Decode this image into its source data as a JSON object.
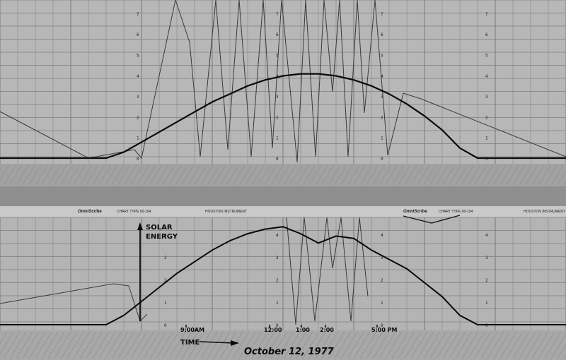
{
  "chart_data": [
    {
      "type": "line",
      "title": "",
      "xlabel": "",
      "ylabel": "",
      "grid": true,
      "y_tick_labels": [
        "0",
        "1",
        "2",
        "3",
        "4",
        "5",
        "6",
        "7"
      ],
      "series": [
        {
          "values_description_free": true,
          "x": [
            0,
            0.5,
            1,
            1.5,
            2,
            2.5,
            3,
            3.5,
            4,
            4.5,
            5,
            5.5,
            6,
            6.5,
            7,
            7.5,
            8,
            8.5,
            9,
            9.5,
            10,
            10.5,
            11,
            11.5,
            12,
            12.5,
            13,
            13.5,
            14,
            14.5,
            15,
            15.5,
            16
          ],
          "y": [
            0,
            0,
            0,
            0,
            0,
            0,
            0,
            0.3,
            0.8,
            1.3,
            1.8,
            2.3,
            2.8,
            3.2,
            3.6,
            3.9,
            4.1,
            4.2,
            4.2,
            4.1,
            3.9,
            3.6,
            3.2,
            2.7,
            2.1,
            1.4,
            0.5,
            0,
            0,
            0,
            0,
            0,
            0
          ]
        }
      ]
    },
    {
      "type": "line",
      "title": "",
      "xlabel": "TIME",
      "ylabel": "SOLAR ENERGY",
      "grid": true,
      "x_tick_labels": [
        "9:00AM",
        "12:00",
        "1:00",
        "2:00",
        "5:00 PM"
      ],
      "y_tick_labels": [
        "0",
        "1",
        "2",
        "3",
        "4"
      ],
      "series": [
        {
          "x": [
            0,
            0.5,
            1,
            1.5,
            2,
            2.5,
            3,
            3.5,
            4,
            4.5,
            5,
            5.5,
            6,
            6.5,
            7,
            7.5,
            8,
            8.5,
            9,
            9.5,
            10,
            10.5,
            11,
            11.5,
            12,
            12.5,
            13,
            13.5,
            14,
            14.5,
            15,
            15.5,
            16
          ],
          "y": [
            0,
            0,
            0,
            0,
            0,
            0,
            0,
            0.4,
            1.0,
            1.6,
            2.2,
            2.7,
            3.2,
            3.6,
            3.9,
            4.1,
            4.2,
            3.9,
            3.5,
            3.8,
            3.7,
            3.2,
            2.8,
            2.4,
            1.8,
            1.2,
            0.4,
            0,
            0,
            0,
            0,
            0,
            0
          ]
        }
      ]
    }
  ],
  "annotations": {
    "solar_energy_line1": "SOLAR",
    "solar_energy_line2": "ENERGY",
    "time_label": "TIME",
    "date_label": "October 12, 1977",
    "x_ticks": [
      "9:00AM",
      "12:00",
      "1:00",
      "2:00",
      "5:00 PM"
    ]
  },
  "print_labels": {
    "brand_left": "OmniScribe",
    "chart_type_left": "CHART TYPE 00-104",
    "maker_center": "HOUSTON INSTRUMENT",
    "brand_right": "OmniScribe",
    "chart_type_right": "CHART TYPE 00-104",
    "maker_right": "HOUSTON INSTRUMENT"
  },
  "colors": {
    "paper": "#b9b9b9",
    "grid": "#8a8a8a",
    "trace": "#0a0a0a",
    "band": "#9c9c9c"
  }
}
